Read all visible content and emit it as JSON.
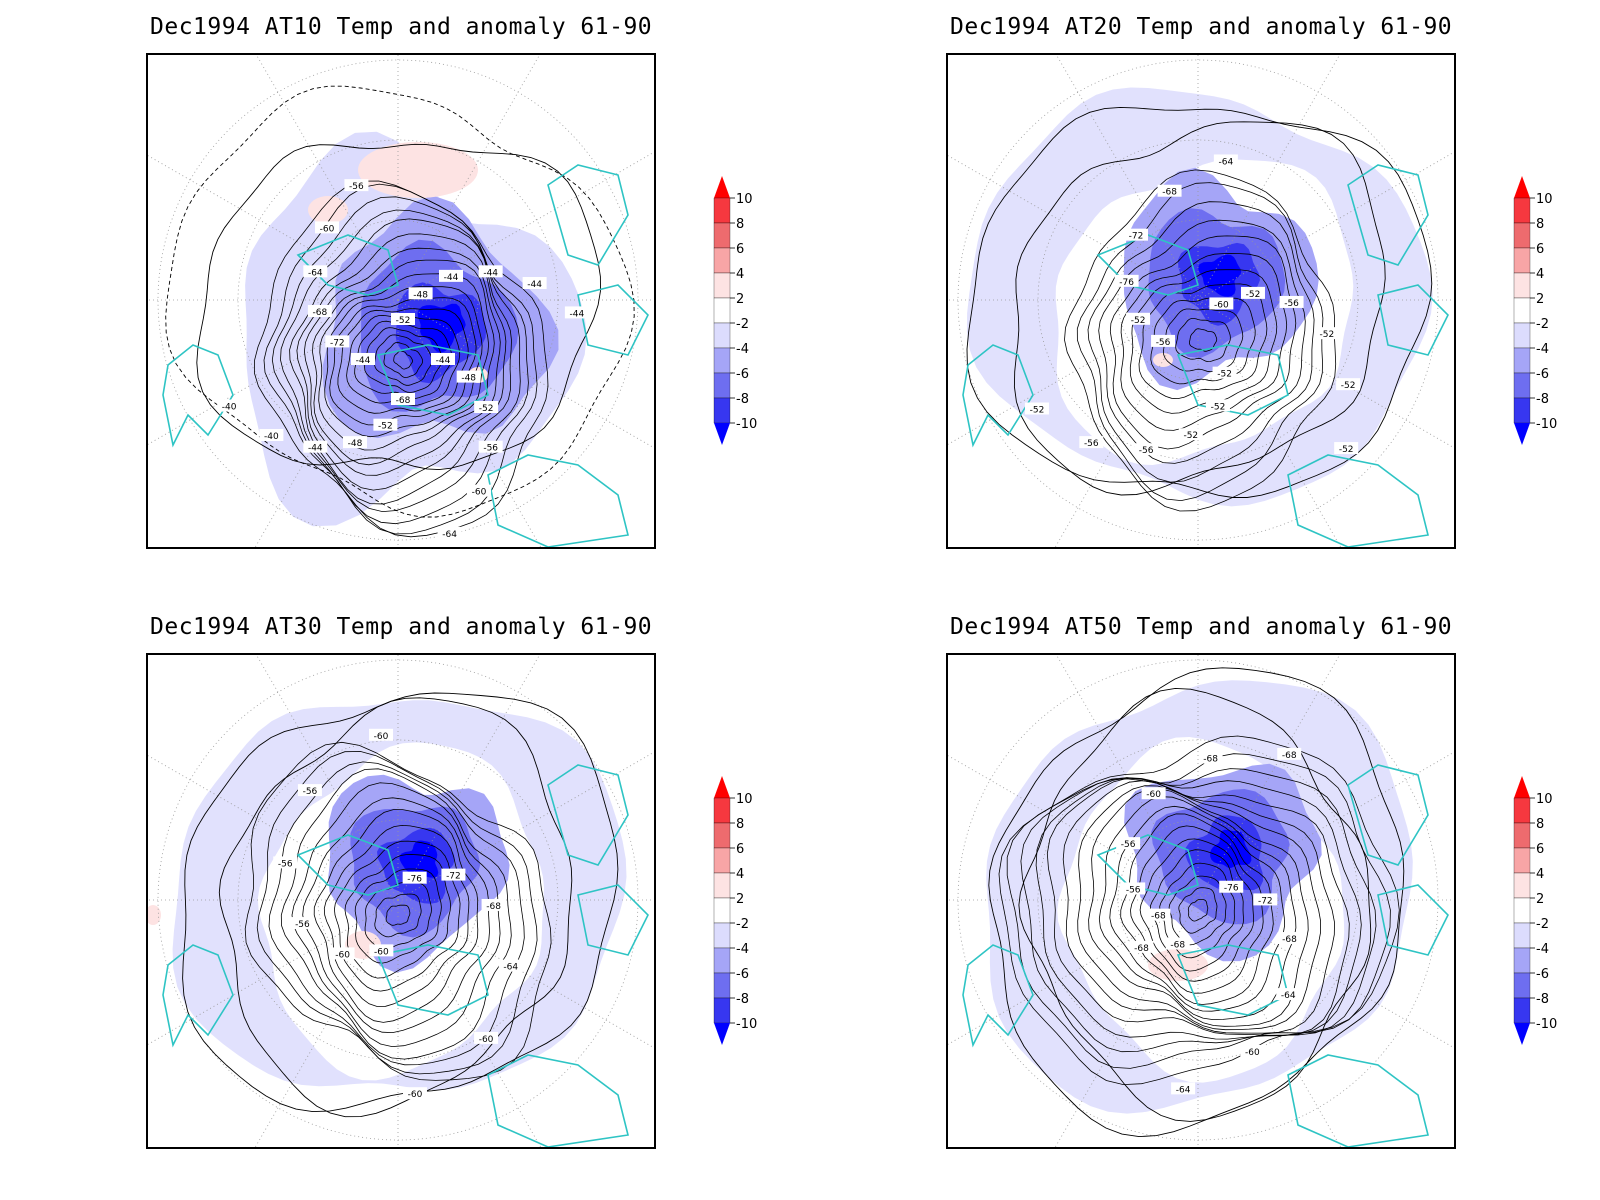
{
  "panels": [
    {
      "id": "at10",
      "title": "Dec1994 AT10 Temp and anomaly 61-90",
      "contour_labels": [
        "-44",
        "-48",
        "-52",
        "-56",
        "-60",
        "-64",
        "-68",
        "-52",
        "-48",
        "-44",
        "-40",
        "-40",
        "-44",
        "-72",
        "-68",
        "-64",
        "-60",
        "-56",
        "-52",
        "-48",
        "-44",
        "-44",
        "-44",
        "-44"
      ]
    },
    {
      "id": "at20",
      "title": "Dec1994 AT20 Temp and anomaly 61-90",
      "contour_labels": [
        "-52",
        "-52",
        "-52",
        "-56",
        "-56",
        "-52",
        "-56",
        "-52",
        "-76",
        "-72",
        "-68",
        "-64",
        "-60",
        "-52",
        "-56",
        "-52",
        "-52",
        "-52"
      ]
    },
    {
      "id": "at30",
      "title": "Dec1994 AT30 Temp and anomaly 61-90",
      "contour_labels": [
        "-60",
        "-60",
        "-56",
        "-56",
        "-56",
        "-60",
        "-76",
        "-72",
        "-68",
        "-64",
        "-60",
        "-60"
      ]
    },
    {
      "id": "at50",
      "title": "Dec1994 AT50 Temp and anomaly 61-90",
      "contour_labels": [
        "-68",
        "-56",
        "-56",
        "-60",
        "-68",
        "-68",
        "-76",
        "-72",
        "-68",
        "-64",
        "-60",
        "-64",
        "-68",
        "-68"
      ]
    }
  ],
  "colorbar": {
    "labels": [
      "10",
      "8",
      "6",
      "4",
      "2",
      "-2",
      "-4",
      "-6",
      "-8",
      "-10"
    ],
    "colors": [
      "#ff0000",
      "#f6383f",
      "#ee6b6e",
      "#f8a5a6",
      "#fde3e3",
      "#ffffff",
      "#dcdcfd",
      "#a5a5f7",
      "#6e6ef0",
      "#3737f0",
      "#0000ff"
    ]
  },
  "colors": {
    "coastline": "#2ec4c4",
    "contour": "#000000",
    "grid": "#999999"
  }
}
